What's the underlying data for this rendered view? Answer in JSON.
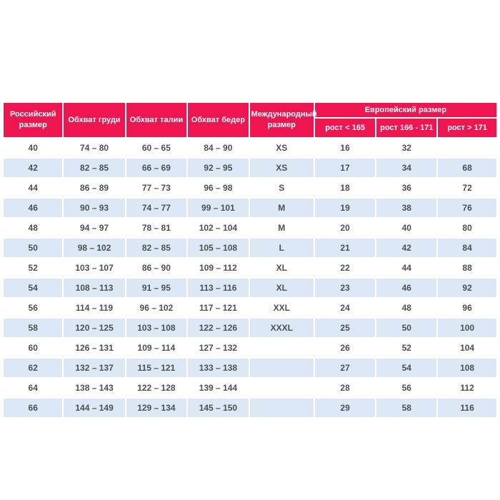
{
  "colors": {
    "page_bg": "#ffffff",
    "header_bg": "#ed1651",
    "header_text": "#ffffff",
    "row_bg": "#ffffff",
    "stripe_bg": "#dce8f5",
    "cell_text": "#4f4f4f"
  },
  "chart_data": {
    "type": "table",
    "title": "",
    "layout": {
      "striped": true,
      "header_levels": 2,
      "separator_color": "#ffffff"
    },
    "header": {
      "merged_columns": [
        "Российский размер",
        "Обхват груди",
        "Обхват талии",
        "Обхват бедер",
        "Международный размер"
      ],
      "group": {
        "label": "Европейский размер",
        "subcolumns": [
          "рост < 165",
          "рост 166 - 171",
          "рост > 171"
        ]
      }
    },
    "rows": [
      [
        "40",
        "74 – 80",
        "60 – 65",
        "84 – 90",
        "XS",
        "16",
        "32",
        ""
      ],
      [
        "42",
        "82 – 85",
        "66 – 69",
        "92 – 95",
        "XS",
        "17",
        "34",
        "68"
      ],
      [
        "44",
        "86 – 89",
        "77 – 73",
        "96 – 98",
        "S",
        "18",
        "36",
        "72"
      ],
      [
        "46",
        "90 – 93",
        "74 – 77",
        "99 – 101",
        "M",
        "19",
        "38",
        "76"
      ],
      [
        "48",
        "94 – 97",
        "78 – 81",
        "102 – 104",
        "M",
        "20",
        "40",
        "80"
      ],
      [
        "50",
        "98 – 102",
        "82 – 85",
        "105 – 108",
        "L",
        "21",
        "42",
        "84"
      ],
      [
        "52",
        "103 – 107",
        "86 – 90",
        "109 – 112",
        "XL",
        "22",
        "44",
        "88"
      ],
      [
        "54",
        "108 – 113",
        "91 – 95",
        "113 – 116",
        "XL",
        "23",
        "46",
        "92"
      ],
      [
        "56",
        "114 – 119",
        "96 – 102",
        "117 – 121",
        "XXL",
        "24",
        "48",
        "96"
      ],
      [
        "58",
        "120 – 125",
        "103 – 108",
        "122 – 126",
        "XXXL",
        "25",
        "50",
        "100"
      ],
      [
        "60",
        "126 – 131",
        "109 – 114",
        "127 – 132",
        "",
        "26",
        "52",
        "104"
      ],
      [
        "62",
        "132 – 137",
        "115 – 121",
        "133 – 138",
        "",
        "27",
        "54",
        "108"
      ],
      [
        "64",
        "138 – 143",
        "122 – 128",
        "139 – 144",
        "",
        "28",
        "56",
        "112"
      ],
      [
        "66",
        "144 – 149",
        "129 – 134",
        "145 – 150",
        "",
        "29",
        "58",
        "116"
      ]
    ]
  }
}
